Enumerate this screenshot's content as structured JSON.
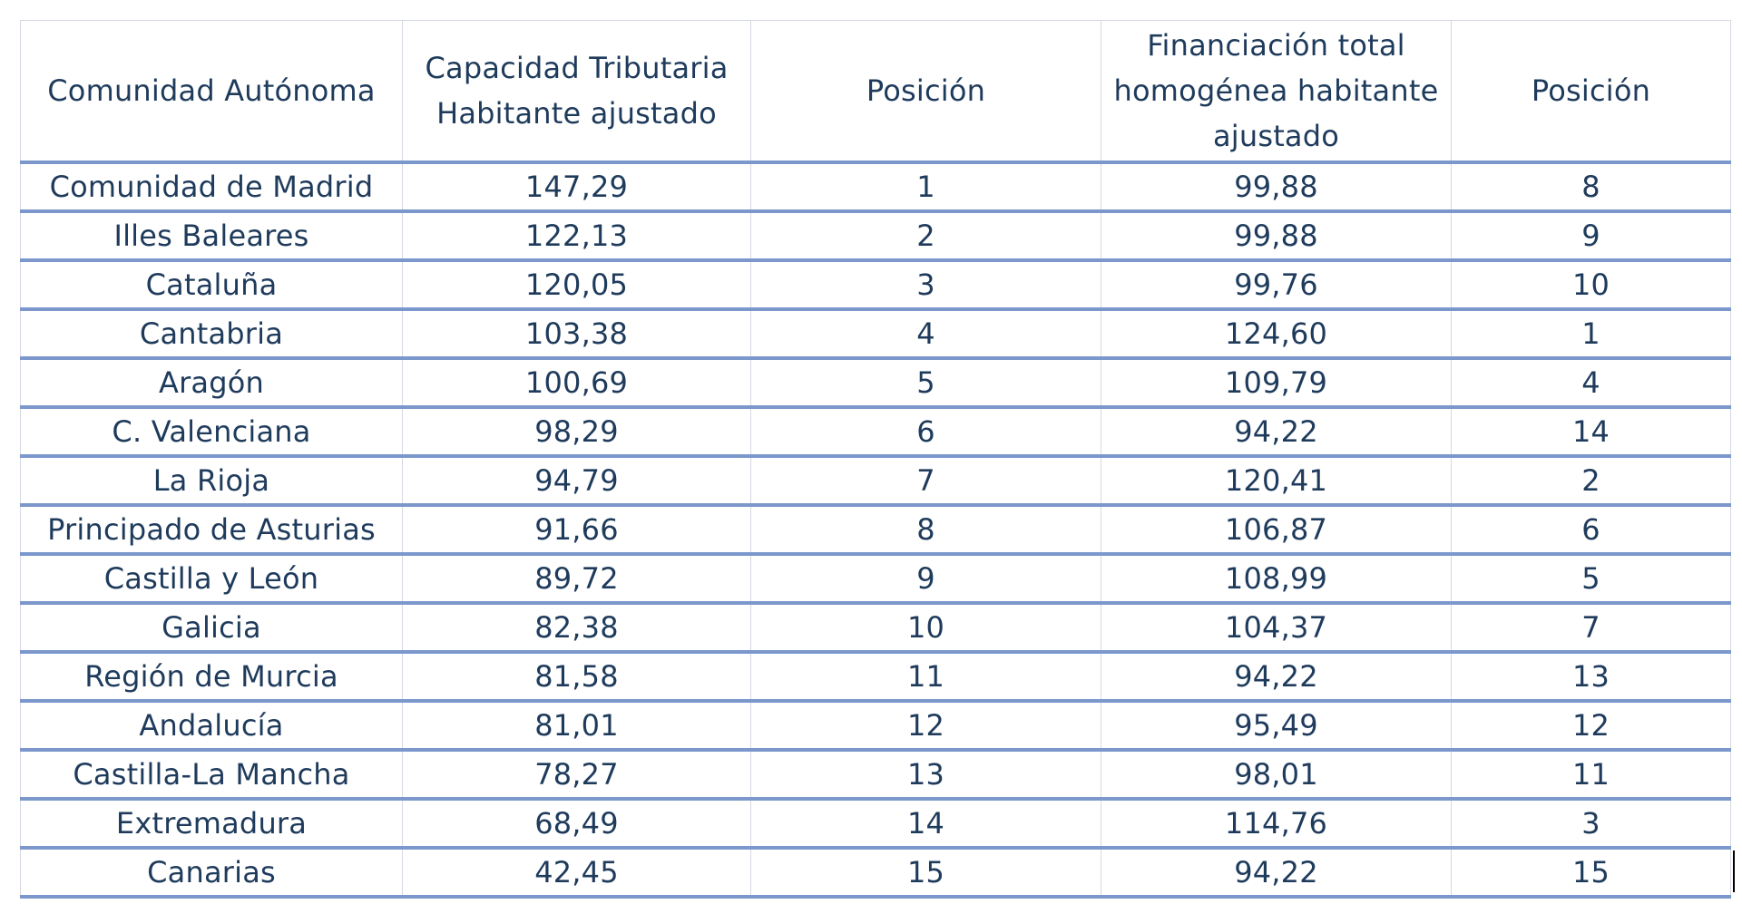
{
  "headers": [
    "Comunidad Autónoma",
    "Capacidad Tributaria Habitante ajustado",
    "Posición",
    "Financiación total homogénea habitante ajustado",
    "Posición"
  ],
  "rows": [
    {
      "comunidad": "Comunidad de Madrid",
      "capacidad": "147,29",
      "pos1": "1",
      "financiacion": "99,88",
      "pos2": "8"
    },
    {
      "comunidad": "Illes Baleares",
      "capacidad": "122,13",
      "pos1": "2",
      "financiacion": "99,88",
      "pos2": "9"
    },
    {
      "comunidad": "Cataluña",
      "capacidad": "120,05",
      "pos1": "3",
      "financiacion": "99,76",
      "pos2": "10"
    },
    {
      "comunidad": "Cantabria",
      "capacidad": "103,38",
      "pos1": "4",
      "financiacion": "124,60",
      "pos2": "1"
    },
    {
      "comunidad": "Aragón",
      "capacidad": "100,69",
      "pos1": "5",
      "financiacion": "109,79",
      "pos2": "4"
    },
    {
      "comunidad": "C. Valenciana",
      "capacidad": "98,29",
      "pos1": "6",
      "financiacion": "94,22",
      "pos2": "14"
    },
    {
      "comunidad": "La Rioja",
      "capacidad": "94,79",
      "pos1": "7",
      "financiacion": "120,41",
      "pos2": "2"
    },
    {
      "comunidad": "Principado de Asturias",
      "capacidad": "91,66",
      "pos1": "8",
      "financiacion": "106,87",
      "pos2": "6"
    },
    {
      "comunidad": "Castilla y León",
      "capacidad": "89,72",
      "pos1": "9",
      "financiacion": "108,99",
      "pos2": "5"
    },
    {
      "comunidad": "Galicia",
      "capacidad": "82,38",
      "pos1": "10",
      "financiacion": "104,37",
      "pos2": "7"
    },
    {
      "comunidad": "Región de Murcia",
      "capacidad": "81,58",
      "pos1": "11",
      "financiacion": "94,22",
      "pos2": "13"
    },
    {
      "comunidad": "Andalucía",
      "capacidad": "81,01",
      "pos1": "12",
      "financiacion": "95,49",
      "pos2": "12"
    },
    {
      "comunidad": "Castilla-La Mancha",
      "capacidad": "78,27",
      "pos1": "13",
      "financiacion": "98,01",
      "pos2": "11"
    },
    {
      "comunidad": "Extremadura",
      "capacidad": "68,49",
      "pos1": "14",
      "financiacion": "114,76",
      "pos2": "3"
    },
    {
      "comunidad": "Canarias",
      "capacidad": "42,45",
      "pos1": "15",
      "financiacion": "94,22",
      "pos2": "15"
    }
  ],
  "colors": {
    "text": "#1f3b5c",
    "row_border": "#7b97cc",
    "grid": "#d4d9e2"
  }
}
